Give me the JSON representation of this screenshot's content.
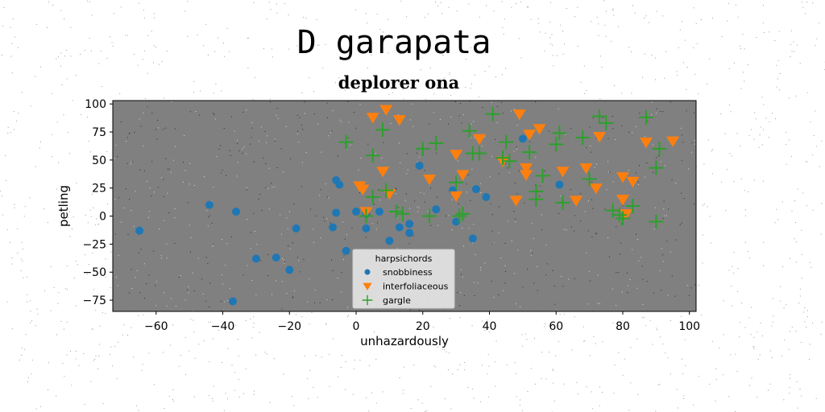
{
  "chart_data": {
    "type": "scatter",
    "suptitle": "D garapata",
    "title": "deplorer ona",
    "xlabel": "unhazardously",
    "ylabel": "petling",
    "xlim": [
      -73,
      102
    ],
    "ylim": [
      -85,
      103
    ],
    "xticks": [
      -60,
      -40,
      -20,
      0,
      20,
      40,
      60,
      80,
      100
    ],
    "yticks": [
      -75,
      -50,
      -25,
      0,
      25,
      50,
      75,
      100
    ],
    "xtick_labels": [
      "−60",
      "−40",
      "−20",
      "0",
      "20",
      "40",
      "60",
      "80",
      "100"
    ],
    "ytick_labels": [
      "−75",
      "−50",
      "−25",
      "0",
      "25",
      "50",
      "75",
      "100"
    ],
    "grid": false,
    "background": "#808080",
    "legend": {
      "title": "harpsichords",
      "placement": "lower-center"
    },
    "series": [
      {
        "name": "snobbiness",
        "marker": "circle",
        "color": "#1f77b4",
        "points": [
          [
            -65,
            -13
          ],
          [
            -44,
            10
          ],
          [
            -36,
            4
          ],
          [
            -37,
            -76
          ],
          [
            -30,
            -38
          ],
          [
            -24,
            -37
          ],
          [
            -20,
            -48
          ],
          [
            -18,
            -11
          ],
          [
            -7,
            -10
          ],
          [
            -6,
            32
          ],
          [
            -5,
            28
          ],
          [
            -6,
            3
          ],
          [
            -3,
            -31
          ],
          [
            0,
            4
          ],
          [
            3,
            -11
          ],
          [
            3,
            2
          ],
          [
            7,
            4
          ],
          [
            10,
            -22
          ],
          [
            13,
            -10
          ],
          [
            16,
            -7
          ],
          [
            16,
            -15
          ],
          [
            19,
            45
          ],
          [
            24,
            6
          ],
          [
            29,
            23
          ],
          [
            30,
            -5
          ],
          [
            35,
            -20
          ],
          [
            36,
            24
          ],
          [
            39,
            17
          ],
          [
            50,
            69
          ],
          [
            61,
            28
          ]
        ]
      },
      {
        "name": "interfoliaceous",
        "marker": "triangle-down",
        "color": "#ff7f0e",
        "points": [
          [
            1,
            27
          ],
          [
            2,
            24
          ],
          [
            3,
            4
          ],
          [
            5,
            88
          ],
          [
            8,
            40
          ],
          [
            9,
            95
          ],
          [
            10,
            20
          ],
          [
            13,
            86
          ],
          [
            22,
            33
          ],
          [
            30,
            55
          ],
          [
            30,
            18
          ],
          [
            32,
            37
          ],
          [
            37,
            69
          ],
          [
            44,
            49
          ],
          [
            48,
            14
          ],
          [
            49,
            91
          ],
          [
            51,
            43
          ],
          [
            51,
            37
          ],
          [
            52,
            73
          ],
          [
            55,
            78
          ],
          [
            62,
            40
          ],
          [
            66,
            14
          ],
          [
            69,
            43
          ],
          [
            72,
            25
          ],
          [
            73,
            71
          ],
          [
            80,
            35
          ],
          [
            80,
            15
          ],
          [
            81,
            2
          ],
          [
            83,
            31
          ],
          [
            87,
            66
          ],
          [
            95,
            67
          ]
        ]
      },
      {
        "name": "gargle",
        "marker": "plus",
        "color": "#2ca02c",
        "points": [
          [
            -3,
            66
          ],
          [
            3,
            0
          ],
          [
            5,
            17
          ],
          [
            5,
            54
          ],
          [
            8,
            77
          ],
          [
            9,
            23
          ],
          [
            12,
            4
          ],
          [
            14,
            2
          ],
          [
            20,
            60
          ],
          [
            22,
            0
          ],
          [
            24,
            65
          ],
          [
            30,
            30
          ],
          [
            31,
            0
          ],
          [
            32,
            2
          ],
          [
            34,
            76
          ],
          [
            35,
            56
          ],
          [
            37,
            56
          ],
          [
            41,
            91
          ],
          [
            44,
            52
          ],
          [
            45,
            66
          ],
          [
            46,
            49
          ],
          [
            52,
            57
          ],
          [
            54,
            22
          ],
          [
            54,
            15
          ],
          [
            56,
            36
          ],
          [
            60,
            64
          ],
          [
            61,
            74
          ],
          [
            62,
            12
          ],
          [
            68,
            70
          ],
          [
            70,
            33
          ],
          [
            73,
            89
          ],
          [
            75,
            83
          ],
          [
            77,
            5
          ],
          [
            79,
            1
          ],
          [
            80,
            -2
          ],
          [
            83,
            9
          ],
          [
            87,
            88
          ],
          [
            90,
            -5
          ],
          [
            90,
            43
          ],
          [
            91,
            60
          ]
        ]
      }
    ]
  }
}
